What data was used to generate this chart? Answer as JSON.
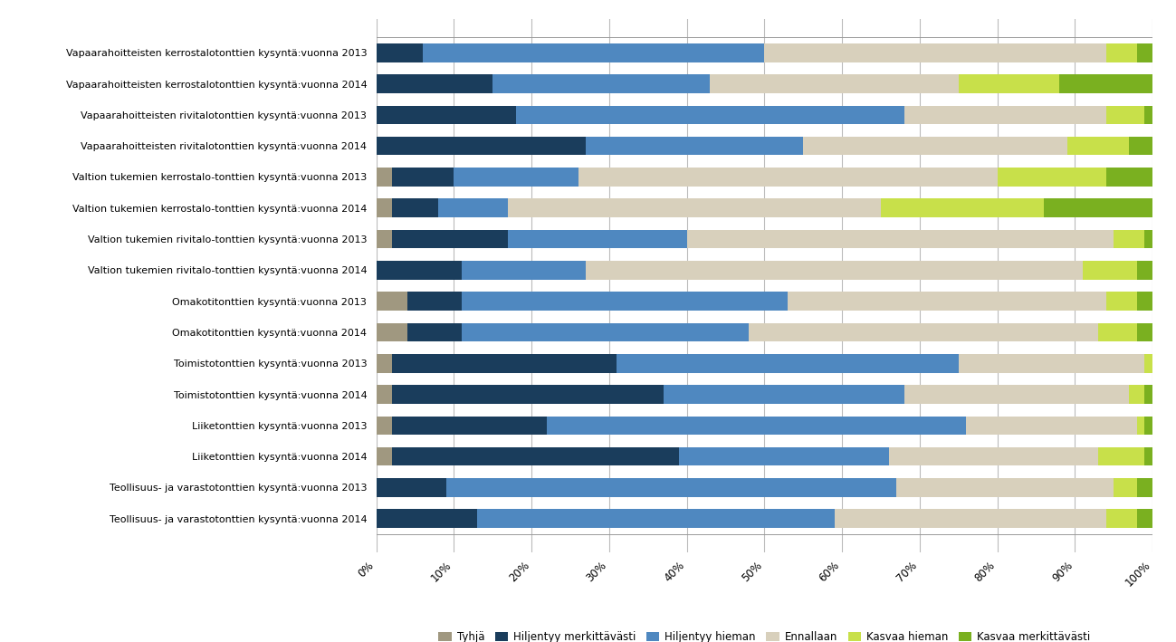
{
  "categories": [
    "Vapaarahoitteisten kerrostalotonttien kysyntä:vuonna 2013",
    "Vapaarahoitteisten kerrostalotonttien kysyntä:vuonna 2014",
    "Vapaarahoitteisten rivitalotonttien kysyntä:vuonna 2013",
    "Vapaarahoitteisten rivitalotonttien kysyntä:vuonna 2014",
    "Valtion tukemien kerrostalo-tonttien kysyntä:vuonna 2013",
    "Valtion tukemien kerrostalo-tonttien kysyntä:vuonna 2014",
    "Valtion tukemien rivitalo-tonttien kysyntä:vuonna 2013",
    "Valtion tukemien rivitalo-tonttien kysyntä:vuonna 2014",
    "Omakotitonttien kysyntä:vuonna 2013",
    "Omakotitonttien kysyntä:vuonna 2014",
    "Toimistotonttien kysyntä:vuonna 2013",
    "Toimistotonttien kysyntä:vuonna 2014",
    "Liiketonttien kysyntä:vuonna 2013",
    "Liiketonttien kysyntä:vuonna 2014",
    "Teollisuus- ja varastotonttien kysyntä:vuonna 2013",
    "Teollisuus- ja varastotonttien kysyntä:vuonna 2014"
  ],
  "segments": {
    "Tyhjä": [
      0,
      0,
      0,
      0,
      2,
      2,
      2,
      0,
      4,
      4,
      2,
      2,
      2,
      2,
      0,
      0
    ],
    "Hiljentyy merkittävästi": [
      6,
      15,
      18,
      27,
      8,
      6,
      15,
      11,
      7,
      7,
      29,
      35,
      20,
      37,
      9,
      13
    ],
    "Hiljentyy hieman": [
      44,
      28,
      50,
      28,
      16,
      9,
      23,
      16,
      42,
      37,
      44,
      31,
      54,
      27,
      58,
      46
    ],
    "Ennallaan": [
      44,
      32,
      26,
      34,
      54,
      48,
      55,
      64,
      41,
      45,
      24,
      29,
      22,
      27,
      28,
      35
    ],
    "Kasvaa hieman": [
      4,
      13,
      5,
      8,
      14,
      21,
      4,
      7,
      4,
      5,
      1,
      2,
      1,
      6,
      3,
      4
    ],
    "Kasvaa merkittävästi": [
      2,
      12,
      1,
      3,
      6,
      14,
      1,
      2,
      2,
      2,
      0,
      1,
      1,
      1,
      2,
      2
    ]
  },
  "colors": {
    "Tyhjä": "#a09880",
    "Hiljentyy merkittävästi": "#1a3d5c",
    "Hiljentyy hieman": "#4f88c0",
    "Ennallaan": "#d8d0bc",
    "Kasvaa hieman": "#c8e04a",
    "Kasvaa merkittävästi": "#7ab020"
  },
  "legend_order": [
    "Tyhjä",
    "Hiljentyy merkittävästi",
    "Hiljentyy hieman",
    "Ennallaan",
    "Kasvaa hieman",
    "Kasvaa merkittävästi"
  ],
  "xlabel_ticks": [
    0,
    10,
    20,
    30,
    40,
    50,
    60,
    70,
    80,
    90,
    100
  ],
  "background_color": "#ffffff"
}
